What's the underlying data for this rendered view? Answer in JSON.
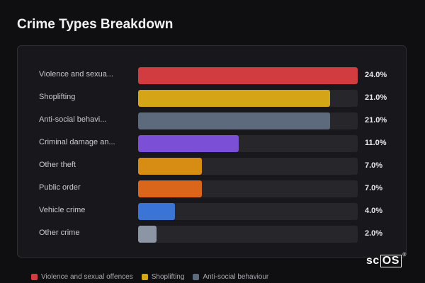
{
  "title": "Crime Types Breakdown",
  "colors": {
    "background": "#0f0f12",
    "card": "#18181c",
    "track": "#26262b"
  },
  "chart_data": {
    "type": "bar",
    "orientation": "horizontal",
    "title": "Crime Types Breakdown",
    "value_format": "percent",
    "xlim": [
      0,
      24
    ],
    "bars": [
      {
        "label": "Violence and sexua...",
        "value": 24.0,
        "display": "24.0%",
        "color": "#d13c40"
      },
      {
        "label": "Shoplifting",
        "value": 21.0,
        "display": "21.0%",
        "color": "#d6a417"
      },
      {
        "label": "Anti-social behavi...",
        "value": 21.0,
        "display": "21.0%",
        "color": "#5d6a7e"
      },
      {
        "label": "Criminal damage an...",
        "value": 11.0,
        "display": "11.0%",
        "color": "#7b4fd6"
      },
      {
        "label": "Other theft",
        "value": 7.0,
        "display": "7.0%",
        "color": "#d78d14"
      },
      {
        "label": "Public order",
        "value": 7.0,
        "display": "7.0%",
        "color": "#d9661b"
      },
      {
        "label": "Vehicle crime",
        "value": 4.0,
        "display": "4.0%",
        "color": "#3a74d6"
      },
      {
        "label": "Other crime",
        "value": 2.0,
        "display": "2.0%",
        "color": "#8c95a3"
      }
    ],
    "legend": [
      {
        "label": "Violence and sexual offences",
        "color": "#d13c40"
      },
      {
        "label": "Shoplifting",
        "color": "#d6a417"
      },
      {
        "label": "Anti-social behaviour",
        "color": "#5d6a7e"
      }
    ],
    "legend_position": "bottom",
    "grid": false
  },
  "watermark": "scOS"
}
